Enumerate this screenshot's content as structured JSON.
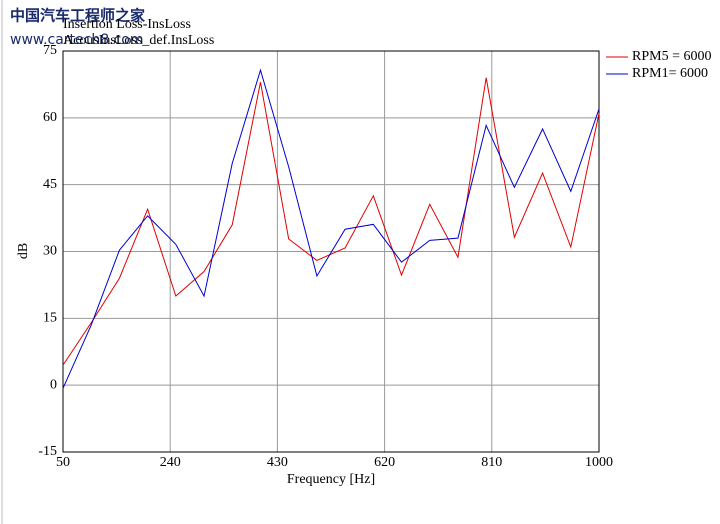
{
  "chart_data": {
    "type": "line",
    "watermark": [
      "中国汽车工程师之家",
      "www.cartech8.com"
    ],
    "title": "Insertion Loss-InsLoss",
    "subtitle": "AcousInsLoss_def.InsLoss",
    "x_label": "Frequency [Hz]",
    "y_label": "dB",
    "x": [
      50,
      100,
      150,
      200,
      250,
      300,
      350,
      400,
      450,
      500,
      550,
      600,
      650,
      700,
      750,
      800,
      850,
      900,
      950,
      1000
    ],
    "series": [
      {
        "name": "RPM5 = 6000",
        "color": "#e00000",
        "values": [
          4.5,
          14,
          24,
          39.5,
          20,
          25.5,
          36,
          68,
          32.8,
          28,
          30.8,
          42.5,
          24.7,
          40.6,
          28.7,
          69,
          33.2,
          47.6,
          31,
          61
        ]
      },
      {
        "name": "RPM1= 6000",
        "color": "#0000d0",
        "values": [
          -0.7,
          13.5,
          30.3,
          38,
          31.6,
          20,
          49.8,
          70.7,
          49,
          24.5,
          35,
          36.1,
          27.6,
          32.5,
          33,
          58.3,
          44.4,
          57.5,
          43.5,
          62
        ]
      }
    ],
    "xlim": [
      50,
      1000
    ],
    "xticks": [
      50,
      240,
      430,
      620,
      810,
      1000
    ],
    "ylim": [
      -15,
      75
    ],
    "yticks": [
      -15,
      0,
      15,
      30,
      45,
      60,
      75
    ],
    "grid": true,
    "legend": "right"
  }
}
